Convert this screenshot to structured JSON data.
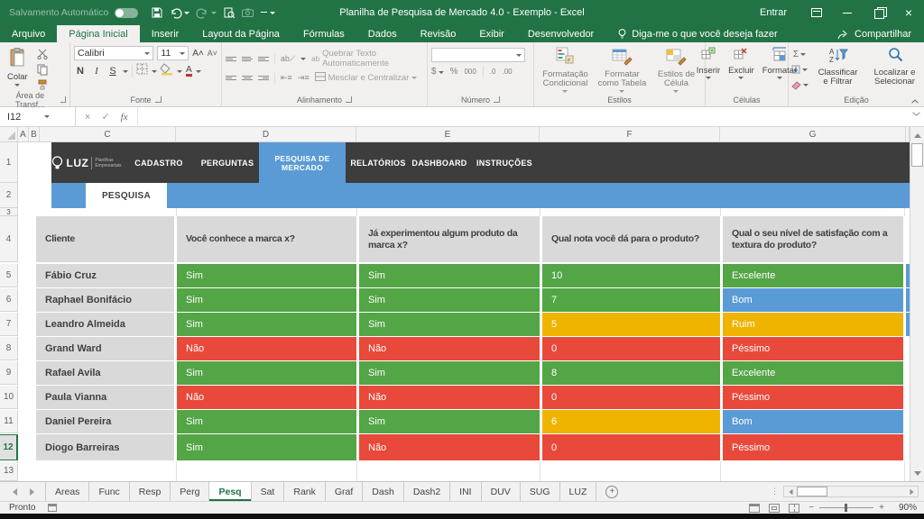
{
  "colors": {
    "green": "#53A546",
    "red": "#E8493A",
    "yellow": "#EFB400",
    "blue": "#5B9BD5",
    "white": "#FFFFFF",
    "gray_cell": "#D9D9D9",
    "excel_green": "#217346",
    "band_dark": "#3D3D3D"
  },
  "titlebar": {
    "autosave_label": "Salvamento Automático",
    "title": "Planilha de Pesquisa de Mercado 4.0 - Exemplo  -  Excel",
    "sign_in": "Entrar"
  },
  "ribbon": {
    "tabs": [
      "Arquivo",
      "Página Inicial",
      "Inserir",
      "Layout da Página",
      "Fórmulas",
      "Dados",
      "Revisão",
      "Exibir",
      "Desenvolvedor"
    ],
    "active_tab": "Página Inicial",
    "tell_me": "Diga-me o que você deseja fazer",
    "share": "Compartilhar",
    "clipboard": {
      "label": "Área de Transf...",
      "paste": "Colar"
    },
    "font": {
      "label": "Fonte",
      "font_name": "Calibri",
      "font_size": "11",
      "bold": "N",
      "italic": "I",
      "underline": "S"
    },
    "alignment": {
      "label": "Alinhamento",
      "wrap": "Quebrar Texto Automaticamente",
      "merge": "Mesclar e Centralizar",
      "ab": "ab"
    },
    "number": {
      "label": "Número",
      "currency": "$",
      "percent": "%",
      "thousands": "000",
      "dec_inc": ".0",
      "dec_dec": ".00"
    },
    "styles": {
      "label": "Estilos",
      "conditional": "Formatação Condicional",
      "format_table": "Formatar como Tabela",
      "cell_styles": "Estilos de Célula"
    },
    "cells": {
      "label": "Células",
      "insert": "Inserir",
      "delete": "Excluir",
      "format": "Formatar"
    },
    "editing": {
      "label": "Edição",
      "sum": "Σ",
      "sort": "Classificar e Filtrar",
      "find": "Localizar e Selecionar"
    }
  },
  "formula_bar": {
    "name_box": "I12",
    "formula": "",
    "cancel": "×",
    "enter": "✓",
    "fx": "fx"
  },
  "grid": {
    "columns": [
      "A",
      "B",
      "C",
      "D",
      "E",
      "F",
      "G"
    ],
    "row_numbers": [
      "1",
      "2",
      "3",
      "4",
      "5",
      "6",
      "7",
      "8",
      "9",
      "10",
      "11",
      "12",
      "13"
    ],
    "active_row": "12"
  },
  "sheet_header": {
    "brand": {
      "name": "LUZ",
      "subtitle_line1": "Planilhas",
      "subtitle_line2": "Empresariais"
    },
    "nav_tabs": [
      "CADASTRO",
      "PERGUNTAS",
      "PESQUISA DE MERCADO",
      "RELATÓRIOS",
      "DASHBOARD",
      "INSTRUÇÕES"
    ],
    "active_nav": "PESQUISA DE MERCADO",
    "sub_tab": "PESQUISA"
  },
  "table": {
    "headers": [
      "Cliente",
      "Você conhece a marca x?",
      "Já experimentou algum produto da marca x?",
      "Qual nota você dá para o produto?",
      "Qual o seu nível de satisfação com a textura do produto?"
    ],
    "rows": [
      {
        "num": "5",
        "client": "Fábio Cruz",
        "answers": [
          [
            "Sim",
            "green"
          ],
          [
            "Sim",
            "green"
          ],
          [
            "10",
            "green"
          ],
          [
            "Excelente",
            "green"
          ]
        ],
        "tail": "blue",
        "active": false
      },
      {
        "num": "6",
        "client": "Raphael Bonifácio",
        "answers": [
          [
            "Sim",
            "green"
          ],
          [
            "Sim",
            "green"
          ],
          [
            "7",
            "green"
          ],
          [
            "Bom",
            "blue"
          ]
        ],
        "tail": "blue",
        "active": false
      },
      {
        "num": "7",
        "client": "Leandro Almeida",
        "answers": [
          [
            "Sim",
            "green"
          ],
          [
            "Sim",
            "green"
          ],
          [
            "5",
            "yellow"
          ],
          [
            "Ruim",
            "yellow"
          ]
        ],
        "tail": "blue",
        "active": false
      },
      {
        "num": "8",
        "client": "Grand Ward",
        "answers": [
          [
            "Não",
            "red"
          ],
          [
            "Não",
            "red"
          ],
          [
            "0",
            "red"
          ],
          [
            "Péssimo",
            "red"
          ]
        ],
        "tail": "white",
        "active": false
      },
      {
        "num": "9",
        "client": "Rafael Avila",
        "answers": [
          [
            "Sim",
            "green"
          ],
          [
            "Sim",
            "green"
          ],
          [
            "8",
            "green"
          ],
          [
            "Excelente",
            "green"
          ]
        ],
        "tail": "white",
        "active": false
      },
      {
        "num": "10",
        "client": "Paula Vianna",
        "answers": [
          [
            "Não",
            "red"
          ],
          [
            "Não",
            "red"
          ],
          [
            "0",
            "red"
          ],
          [
            "Péssimo",
            "red"
          ]
        ],
        "tail": "white",
        "active": false
      },
      {
        "num": "11",
        "client": "Daniel Pereira",
        "answers": [
          [
            "Sim",
            "green"
          ],
          [
            "Sim",
            "green"
          ],
          [
            "6",
            "yellow"
          ],
          [
            "Bom",
            "blue"
          ]
        ],
        "tail": "white",
        "active": false
      },
      {
        "num": "12",
        "client": "Diogo Barreiras",
        "answers": [
          [
            "Sim",
            "green"
          ],
          [
            "Não",
            "red"
          ],
          [
            "0",
            "red"
          ],
          [
            "Péssimo",
            "red"
          ]
        ],
        "tail": "white",
        "active": true
      }
    ]
  },
  "sheet_tabs": {
    "items": [
      "Areas",
      "Func",
      "Resp",
      "Perg",
      "Pesq",
      "Sat",
      "Rank",
      "Graf",
      "Dash",
      "Dash2",
      "INI",
      "DUV",
      "SUG",
      "LUZ"
    ],
    "active": "Pesq",
    "add_label": "+"
  },
  "status_bar": {
    "ready": "Pronto",
    "zoom": "90%"
  }
}
